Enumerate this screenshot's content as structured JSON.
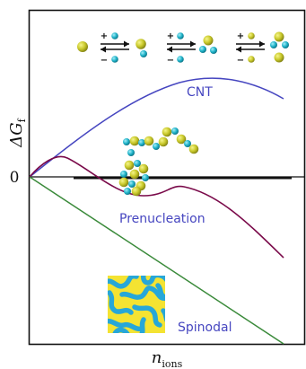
{
  "axes": {
    "y_label_main": "ΔG",
    "y_label_sub": "f",
    "x_label_main": "n",
    "x_label_sub": "ions",
    "zero_tick": "0"
  },
  "curves": {
    "cnt": {
      "label": "CNT",
      "color": "#4646c0"
    },
    "prenucleation": {
      "label": "Prenucleation",
      "color": "#7a0a4a",
      "label_color": "#4646c0"
    },
    "spinodal": {
      "label": "Spinodal",
      "color": "#3a8a3a",
      "label_color": "#4646c0"
    }
  },
  "reaction_ops": {
    "step1": {
      "plus": "+",
      "minus": "−"
    },
    "step2": {
      "plus": "+",
      "minus": "−"
    },
    "step3": {
      "plus": "+",
      "minus": "−"
    }
  },
  "colors": {
    "gold_ion": "#c8c82a",
    "cyan_ion": "#1fb3c9",
    "spinodal_yellow": "#f4e332",
    "spinodal_blue": "#27a7d8"
  }
}
